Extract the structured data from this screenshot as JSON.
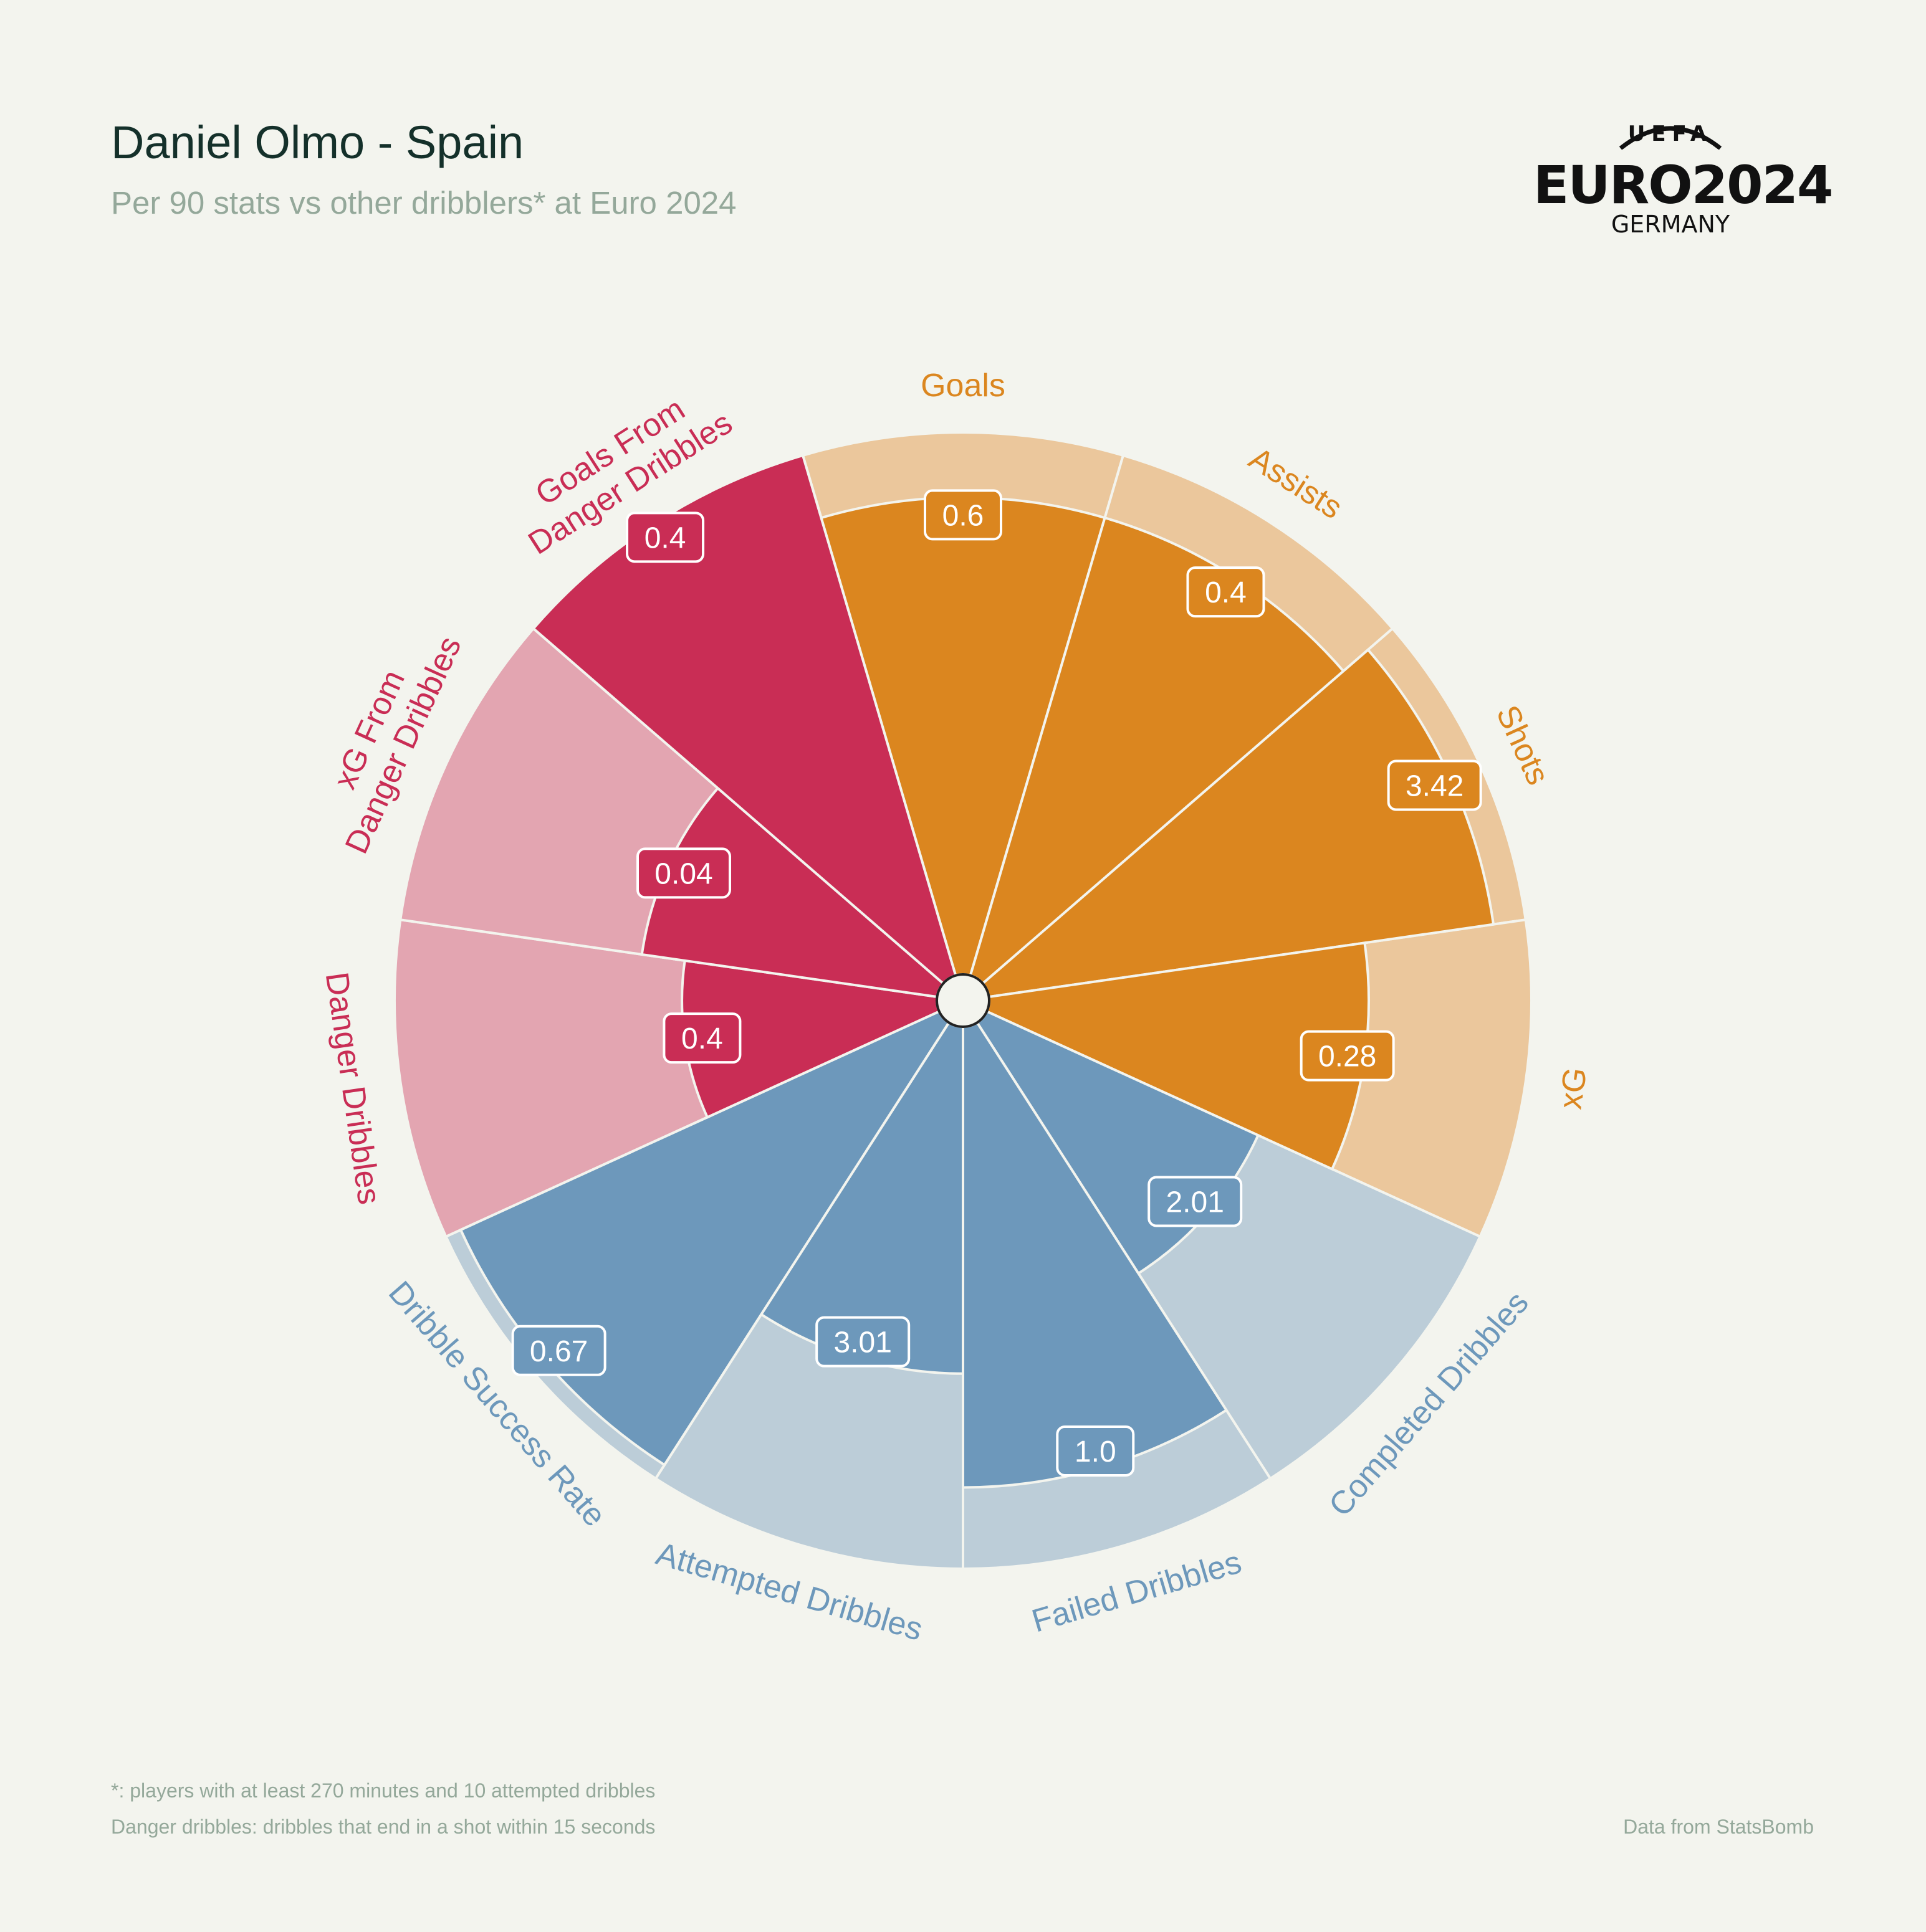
{
  "header": {
    "title": "Daniel Olmo - Spain",
    "subtitle": "Per 90 stats vs other dribblers* at Euro 2024"
  },
  "logo": {
    "top": "UEFA",
    "main": "EURO2024",
    "sub": "GERMANY"
  },
  "footer": {
    "note1": "*: players with at least 270 minutes and 10 attempted dribbles",
    "note2": "Danger dribbles: dribbles that end in a shot within 15 seconds",
    "credit": "Data from StatsBomb"
  },
  "colors": {
    "background": "#f3f4ee",
    "attacking_dark": "#db861f",
    "attacking_light": "#ebc79c",
    "danger_dark": "#c92d55",
    "danger_light": "#e3a5b1",
    "dribble_dark": "#6d98bb",
    "dribble_light": "#bccdd8",
    "edge": "#f3f4ee"
  },
  "chart_data": {
    "type": "pizza",
    "value_unit": "percentile rank (0-100) vs other dribblers",
    "categories": [
      "Goals",
      "Assists",
      "Shots",
      "xG",
      "Completed Dribbles",
      "Failed Dribbles",
      "Attempted Dribbles",
      "Dribble Success Rate",
      "Danger Dribbles",
      "xG From Danger Dribbles",
      "Goals From Danger Dribbles"
    ],
    "label_lines": [
      [
        "Goals"
      ],
      [
        "Assists"
      ],
      [
        "Shots"
      ],
      [
        "xG"
      ],
      [
        "Completed Dribbles"
      ],
      [
        "Failed Dribbles"
      ],
      [
        "Attempted Dribbles"
      ],
      [
        "Dribble Success Rate"
      ],
      [
        "Danger Dribbles"
      ],
      [
        "xG From",
        "Danger Dribbles"
      ],
      [
        "Goals From",
        "Danger Dribbles"
      ]
    ],
    "value_labels": [
      "0.6",
      "0.4",
      "3.42",
      "0.28",
      "2.01",
      "1.0",
      "3.01",
      "0.67",
      "0.4",
      "0.04",
      "0.4"
    ],
    "percentiles": [
      88,
      88,
      94,
      70,
      55,
      85,
      64,
      97,
      47,
      55,
      100
    ],
    "groups": [
      "attacking",
      "attacking",
      "attacking",
      "attacking",
      "dribble",
      "dribble",
      "dribble",
      "dribble",
      "danger",
      "danger",
      "danger"
    ],
    "max": 100
  }
}
